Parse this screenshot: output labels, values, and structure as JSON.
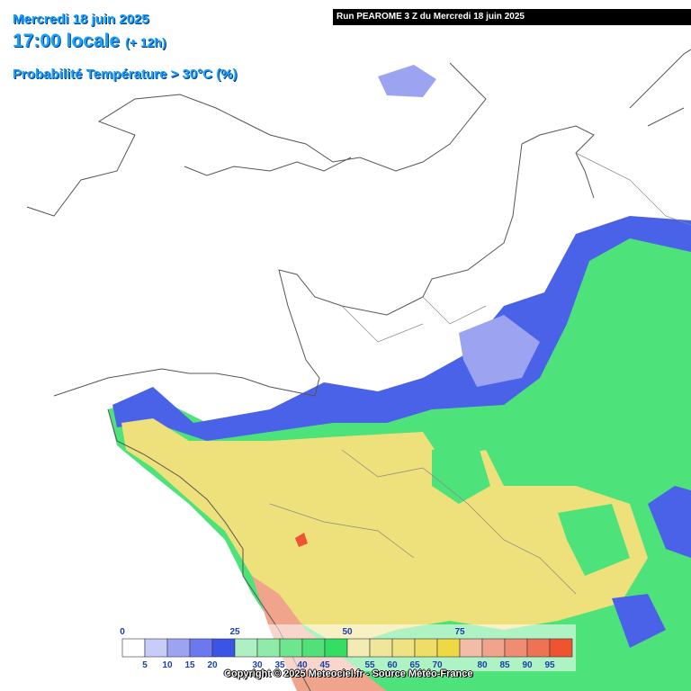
{
  "header": {
    "date": "Mercredi 18 juin 2025",
    "time": "17:00 locale",
    "lead": "(+ 12h)",
    "parameter": "Probabilité Température > 30°C (%)"
  },
  "run": "Run PEAROME 3 Z du Mercredi 18 juin 2025",
  "legend": {
    "top_labels": [
      0,
      25,
      50,
      75
    ],
    "bottom_labels": [
      5,
      10,
      15,
      20,
      30,
      35,
      40,
      45,
      55,
      60,
      65,
      70,
      80,
      85,
      90,
      95
    ],
    "colors": [
      "#ffffff",
      "#c8ccf8",
      "#9ca4f2",
      "#6c78ee",
      "#3c54e6",
      "#aef0c4",
      "#8eeca8",
      "#6ee68e",
      "#52e078",
      "#34de62",
      "#f2ecb4",
      "#f0e69a",
      "#eee282",
      "#eede66",
      "#eed944",
      "#f2bca6",
      "#f0a48c",
      "#f08c72",
      "#ee7254",
      "#ee5430"
    ]
  },
  "copyright": "Copyright © 2025 Meteociel.fr - Source Météo-France"
}
